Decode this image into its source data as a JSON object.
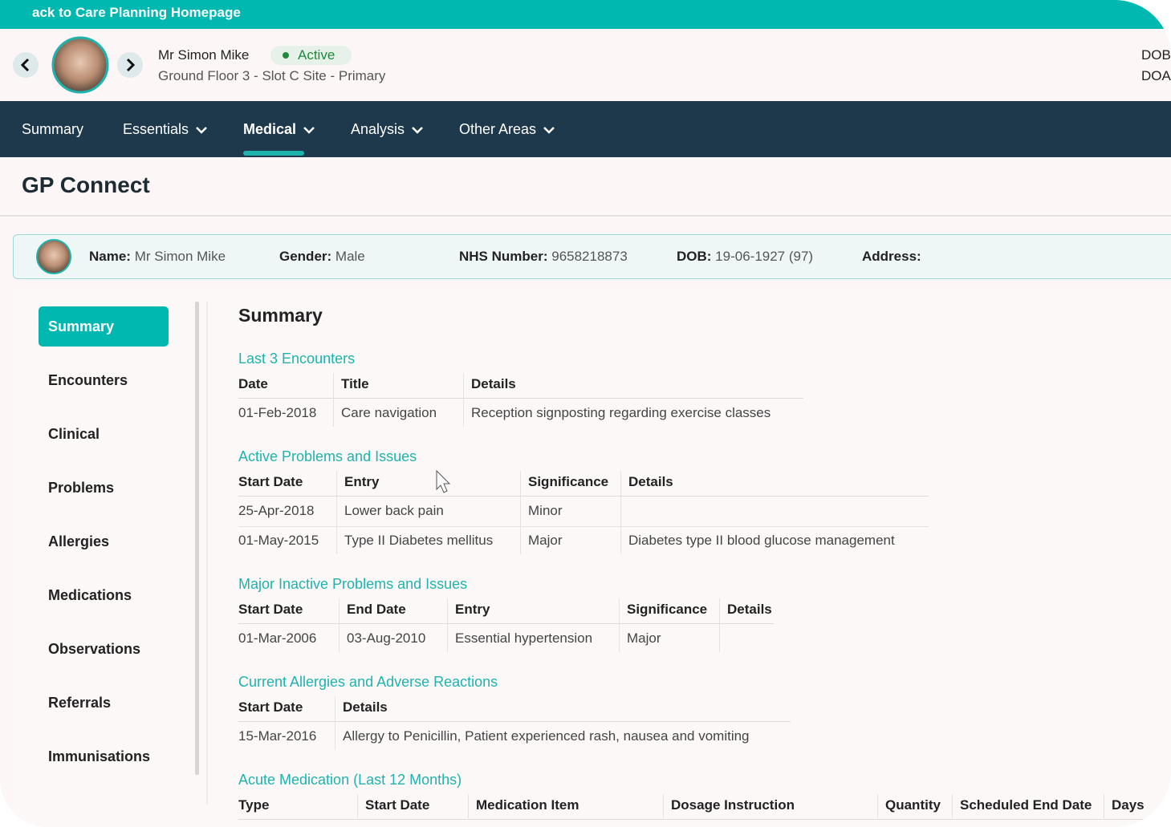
{
  "top_bar": {
    "link": "ack to Care Planning Homepage"
  },
  "patient_header": {
    "name": "Mr Simon Mike",
    "status": "Active",
    "location": "Ground Floor 3 - Slot C Site - Primary",
    "right_labels": [
      "DOB",
      "DOA"
    ]
  },
  "nav": {
    "items": [
      {
        "label": "Summary",
        "dropdown": false,
        "active": false
      },
      {
        "label": "Essentials",
        "dropdown": true,
        "active": false
      },
      {
        "label": "Medical",
        "dropdown": true,
        "active": true
      },
      {
        "label": "Analysis",
        "dropdown": true,
        "active": false
      },
      {
        "label": "Other Areas",
        "dropdown": true,
        "active": false
      }
    ]
  },
  "page_title": "GP Connect",
  "banner": {
    "fields": [
      {
        "label": "Name:",
        "value": "Mr Simon Mike"
      },
      {
        "label": "Gender:",
        "value": "Male"
      },
      {
        "label": "NHS Number:",
        "value": "9658218873"
      },
      {
        "label": "DOB:",
        "value": "19-06-1927 (97)"
      },
      {
        "label": "Address:",
        "value": null
      }
    ]
  },
  "sidebar": {
    "items": [
      "Summary",
      "Encounters",
      "Clinical",
      "Problems",
      "Allergies",
      "Medications",
      "Observations",
      "Referrals",
      "Immunisations"
    ],
    "active": 0
  },
  "content": {
    "title": "Summary",
    "sections": [
      {
        "title": "Last 3 Encounters",
        "columns": [
          "Date",
          "Title",
          "Details"
        ],
        "rows": [
          [
            "01-Feb-2018",
            "Care navigation",
            "Reception signposting regarding exercise classes"
          ]
        ]
      },
      {
        "title": "Active Problems and Issues",
        "columns": [
          "Start Date",
          "Entry",
          "Significance",
          "Details"
        ],
        "rows": [
          [
            "25-Apr-2018",
            "Lower back pain",
            "Minor",
            null
          ],
          [
            "01-May-2015",
            "Type II Diabetes mellitus",
            "Major",
            "Diabetes type II blood glucose management"
          ]
        ]
      },
      {
        "title": "Major Inactive Problems and Issues",
        "columns": [
          "Start Date",
          "End Date",
          "Entry",
          "Significance",
          "Details"
        ],
        "rows": [
          [
            "01-Mar-2006",
            "03-Aug-2010",
            "Essential hypertension",
            "Major",
            null
          ]
        ]
      },
      {
        "title": "Current Allergies and Adverse Reactions",
        "columns": [
          "Start Date",
          "Details"
        ],
        "rows": [
          [
            "15-Mar-2016",
            "Allergy to Penicillin, Patient experienced rash, nausea and vomiting"
          ]
        ]
      },
      {
        "title": "Acute Medication (Last 12 Months)",
        "columns": [
          "Type",
          "Start Date",
          "Medication Item",
          "Dosage Instruction",
          "Quantity",
          "Scheduled End Date",
          "Days"
        ],
        "rows": []
      }
    ]
  }
}
